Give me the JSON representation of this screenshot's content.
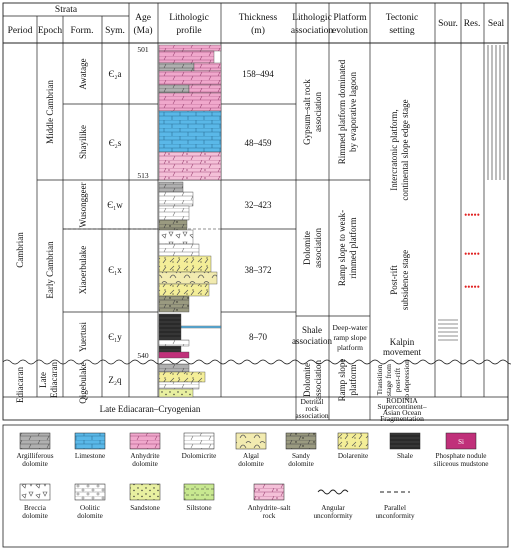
{
  "header": {
    "strata": "Strata",
    "period": "Period",
    "epoch": "Epoch",
    "formation": "Form.",
    "symbol": "Sym.",
    "age_line1": "Age",
    "age_line2": "(Ma)",
    "litho_profile_line1": "Lithologic",
    "litho_profile_line2": "profile",
    "thickness_line1": "Thickness",
    "thickness_line2": "(m)",
    "litho_assoc_line1": "Lithologic",
    "litho_assoc_line2": "association",
    "platform_line1": "Platform",
    "platform_line2": "evolution",
    "tectonic_line1": "Tectonic",
    "tectonic_line2": "setting",
    "source": "Sour.",
    "reservoir": "Res.",
    "seal": "Seal"
  },
  "periods": {
    "cambrian": "Cambrian",
    "ediacaran": "Ediacaran"
  },
  "epochs": {
    "middle_cambrian": "Middle Cambrian",
    "early_cambrian": "Early Cambrian",
    "late_ediacaran_line1": "Late",
    "late_ediacaran_line2": "Ediacaran"
  },
  "formations": [
    {
      "name": "Awatage",
      "symbol": "Є₂a",
      "thickness": "158–494"
    },
    {
      "name": "Shayilike",
      "symbol": "Є₂s",
      "thickness": "48–459"
    },
    {
      "name": "Wusonggeer",
      "symbol": "Є₁w",
      "thickness": "32–423"
    },
    {
      "name": "Xiaoerbulake",
      "symbol": "Є₁x",
      "thickness": "38–372"
    },
    {
      "name": "Yuertusi",
      "symbol": "Є₁y",
      "thickness": "8–70"
    },
    {
      "name": "Qigebulake",
      "symbol": "Z₂q",
      "thickness": ""
    }
  ],
  "ages": {
    "top": "501",
    "mid": "513",
    "base": "540"
  },
  "litho_assoc": {
    "gypsum_line1": "Gypsum–salt rock",
    "gypsum_line2": "association",
    "dolomite_line1": "Dolomite",
    "dolomite_line2": "association",
    "shale_line1": "Shale",
    "shale_line2": "association",
    "dolomite2_line1": "Dolomite",
    "dolomite2_line2": "association",
    "detrital_line1": "Detrital",
    "detrital_line2": "rock",
    "detrital_line3": "association"
  },
  "platform": {
    "rimmed_line1": "Rimmed platform dominated",
    "rimmed_line2": "by evaporative lagoon",
    "ramp_weak_line1": "Ramp slope to weak-",
    "ramp_weak_line2": "rimmed platform",
    "deep_line1": "Deep-water",
    "deep_line2": "ramp slope",
    "deep_line3": "platform",
    "ramp_slope_line1": "Ramp slope",
    "ramp_slope_line2": "platform"
  },
  "tectonic": {
    "intercratonic_line1": "Intercratonic platform,",
    "intercratonic_line2": "continental slope edge stage",
    "postrift_line1": "Post-rift",
    "postrift_line2": "subsidence stage",
    "kalpin_line1": "Kalpin",
    "kalpin_line2": "movement",
    "transition_line1": "Transition",
    "transition_line2": "stage from",
    "transition_line3": "post-rift",
    "transition_line4": "to depression",
    "rodinia_line1": "RODINIA",
    "rodinia_line2": "Supercontinent–",
    "rodinia_line3": "Asian Ocean",
    "rodinia_line4": "Fragmentation"
  },
  "bottom_row": "Late Ediacaran–Cryogenian",
  "legend": [
    {
      "key": "argilliferous-dolomite",
      "line1": "Argilliferous",
      "line2": "dolomite",
      "color": "#a8a8a8"
    },
    {
      "key": "limestone",
      "line1": "Limestone",
      "line2": "",
      "color": "#5ab8e8"
    },
    {
      "key": "anhydrite-dolomite",
      "line1": "Anhydrite",
      "line2": "dolomite",
      "color": "#f0a8cc"
    },
    {
      "key": "dolomicrite",
      "line1": "Dolomicrite",
      "line2": "",
      "color": "#ffffff"
    },
    {
      "key": "algal-dolomite",
      "line1": "Algal",
      "line2": "dolomite",
      "color": "#f2ebb0"
    },
    {
      "key": "sandy-dolomite",
      "line1": "Sandy",
      "line2": "dolomite",
      "color": "#9a9a80"
    },
    {
      "key": "dolarenite",
      "line1": "Dolarenite",
      "line2": "",
      "color": "#f4ee98"
    },
    {
      "key": "shale",
      "line1": "Shale",
      "line2": "",
      "color": "#2a2a2a"
    },
    {
      "key": "phosphate-nodule",
      "line1": "Phosphate nodule",
      "line2": "siliceous mudstone",
      "color": "#c0307a"
    },
    {
      "key": "breccia-dolomite",
      "line1": "Breccia",
      "line2": "dolomite",
      "color": "#ffffff"
    },
    {
      "key": "oolitic-dolomite",
      "line1": "Oolitic",
      "line2": "dolomite",
      "color": "#ffffff"
    },
    {
      "key": "sandstone",
      "line1": "Sandstone",
      "line2": "",
      "color": "#e8f0a0"
    },
    {
      "key": "siltstone",
      "line1": "Siltstone",
      "line2": "",
      "color": "#c8e890"
    },
    {
      "key": "anhydrite-salt-rock",
      "line1": "Anhydrite–salt",
      "line2": "rock",
      "color": "#f4c0d8"
    },
    {
      "key": "angular-unconformity",
      "line1": "Angular",
      "line2": "unconformity",
      "color": "#111111"
    },
    {
      "key": "parallel-unconformity",
      "line1": "Parallel",
      "line2": "unconformity",
      "color": "#111111"
    }
  ],
  "legend_si_label": "Si"
}
